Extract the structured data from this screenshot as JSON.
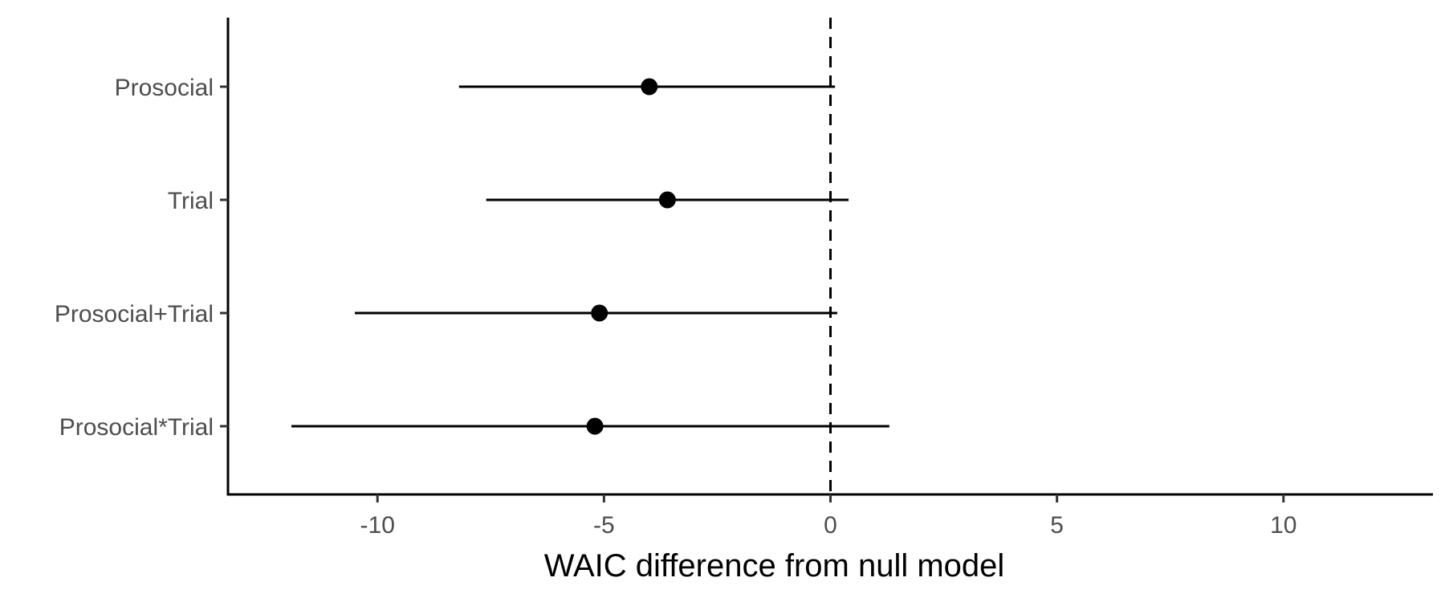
{
  "chart_data": {
    "type": "scatter",
    "subtype": "point-range",
    "title": "",
    "xlabel": "WAIC difference from null model",
    "ylabel": "",
    "xlim": [
      -13.3,
      13.3
    ],
    "x_ticks": [
      -10,
      -5,
      0,
      5,
      10
    ],
    "x_tick_labels": [
      "-10",
      "-5",
      "0",
      "5",
      "10"
    ],
    "reference_line": {
      "x": 0,
      "style": "dashed"
    },
    "grid": false,
    "legend": "none",
    "categories": [
      "Prosocial",
      "Trial",
      "Prosocial+Trial",
      "Prosocial*Trial"
    ],
    "estimates": [
      -4.0,
      -3.6,
      -5.1,
      -5.2
    ],
    "lower": [
      -8.2,
      -7.6,
      -10.5,
      -11.9
    ],
    "upper": [
      0.1,
      0.4,
      0.15,
      1.3
    ],
    "colors": {
      "point": "#000000",
      "line": "#000000",
      "tick_text": "#4d4d4d"
    }
  }
}
